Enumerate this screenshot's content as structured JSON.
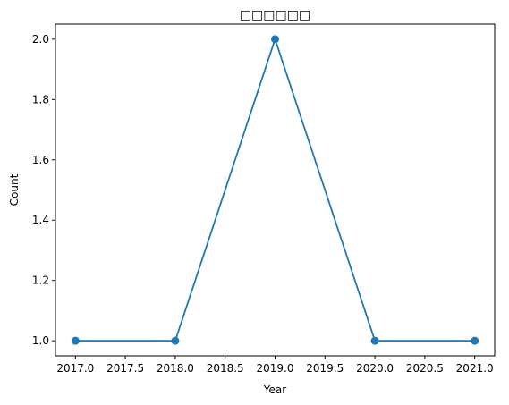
{
  "chart_data": {
    "type": "line",
    "title": "□□□□□□",
    "xlabel": "Year",
    "ylabel": "Count",
    "x": [
      2017,
      2018,
      2019,
      2020,
      2021
    ],
    "series": [
      {
        "values": [
          1,
          1,
          2,
          1,
          1
        ]
      }
    ],
    "xlim": [
      2016.8,
      2021.2
    ],
    "ylim": [
      0.95,
      2.05
    ],
    "xticks": [
      "2017.0",
      "2017.5",
      "2018.0",
      "2018.5",
      "2019.0",
      "2019.5",
      "2020.0",
      "2020.5",
      "2021.0"
    ],
    "yticks": [
      "1.0",
      "1.2",
      "1.4",
      "1.6",
      "1.8",
      "2.0"
    ],
    "grid": false,
    "marker": "circle",
    "line_color": "#1f77b4"
  }
}
